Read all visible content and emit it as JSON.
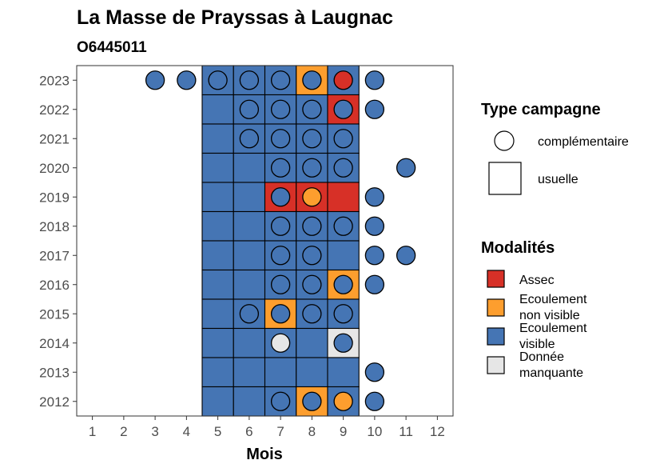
{
  "chart_data": {
    "type": "heatmap",
    "title": "La Masse de Prayssas à Laugnac",
    "subtitle": "O6445011",
    "xlabel": "Mois",
    "ylabel": "",
    "x_ticks": [
      "1",
      "2",
      "3",
      "4",
      "5",
      "6",
      "7",
      "8",
      "9",
      "10",
      "11",
      "12"
    ],
    "y_ticks": [
      "2012",
      "2013",
      "2014",
      "2015",
      "2016",
      "2017",
      "2018",
      "2019",
      "2020",
      "2021",
      "2022",
      "2023"
    ],
    "xlim": [
      0.5,
      12.5
    ],
    "legend_type": {
      "title": "Type campagne",
      "items": [
        {
          "key": "complementaire",
          "label": "complémentaire",
          "shape": "circle"
        },
        {
          "key": "usuelle",
          "label": "usuelle",
          "shape": "square"
        }
      ]
    },
    "legend_modalites": {
      "title": "Modalités",
      "items": [
        {
          "key": "assec",
          "label_lines": [
            "Assec"
          ],
          "color": "#d73027"
        },
        {
          "key": "ecoulement_non_visible",
          "label_lines": [
            "Ecoulement",
            "non visible"
          ],
          "color": "#fd9e2e"
        },
        {
          "key": "ecoulement_visible",
          "label_lines": [
            "Ecoulement",
            "visible"
          ],
          "color": "#4575b4"
        },
        {
          "key": "donnee_manquante",
          "label_lines": [
            "Donnée",
            "manquante"
          ],
          "color": "#e6e6e6"
        }
      ]
    },
    "squares": [
      {
        "year": 2023,
        "values": {
          "5": "ecoulement_visible",
          "6": "ecoulement_visible",
          "7": "ecoulement_visible",
          "8": "ecoulement_non_visible",
          "9": "ecoulement_visible"
        }
      },
      {
        "year": 2022,
        "values": {
          "5": "ecoulement_visible",
          "6": "ecoulement_visible",
          "7": "ecoulement_visible",
          "8": "ecoulement_visible",
          "9": "assec"
        }
      },
      {
        "year": 2021,
        "values": {
          "5": "ecoulement_visible",
          "6": "ecoulement_visible",
          "7": "ecoulement_visible",
          "8": "ecoulement_visible",
          "9": "ecoulement_visible"
        }
      },
      {
        "year": 2020,
        "values": {
          "5": "ecoulement_visible",
          "6": "ecoulement_visible",
          "7": "ecoulement_visible",
          "8": "ecoulement_visible",
          "9": "ecoulement_visible"
        }
      },
      {
        "year": 2019,
        "values": {
          "5": "ecoulement_visible",
          "6": "ecoulement_visible",
          "7": "assec",
          "8": "assec",
          "9": "assec"
        }
      },
      {
        "year": 2018,
        "values": {
          "5": "ecoulement_visible",
          "6": "ecoulement_visible",
          "7": "ecoulement_visible",
          "8": "ecoulement_visible",
          "9": "ecoulement_visible"
        }
      },
      {
        "year": 2017,
        "values": {
          "5": "ecoulement_visible",
          "6": "ecoulement_visible",
          "7": "ecoulement_visible",
          "8": "ecoulement_visible",
          "9": "ecoulement_visible"
        }
      },
      {
        "year": 2016,
        "values": {
          "5": "ecoulement_visible",
          "6": "ecoulement_visible",
          "7": "ecoulement_visible",
          "8": "ecoulement_visible",
          "9": "ecoulement_non_visible"
        }
      },
      {
        "year": 2015,
        "values": {
          "5": "ecoulement_visible",
          "6": "ecoulement_visible",
          "7": "ecoulement_non_visible",
          "8": "ecoulement_visible",
          "9": "ecoulement_visible"
        }
      },
      {
        "year": 2014,
        "values": {
          "5": "ecoulement_visible",
          "6": "ecoulement_visible",
          "7": "ecoulement_visible",
          "8": "ecoulement_visible",
          "9": "donnee_manquante"
        }
      },
      {
        "year": 2013,
        "values": {
          "5": "ecoulement_visible",
          "6": "ecoulement_visible",
          "7": "ecoulement_visible",
          "8": "ecoulement_visible",
          "9": "ecoulement_visible"
        }
      },
      {
        "year": 2012,
        "values": {
          "5": "ecoulement_visible",
          "6": "ecoulement_visible",
          "7": "ecoulement_visible",
          "8": "ecoulement_non_visible",
          "9": "ecoulement_visible"
        }
      }
    ],
    "circles": [
      {
        "year": 2023,
        "values": {
          "3": "ecoulement_visible",
          "4": "ecoulement_visible",
          "5": "ecoulement_visible",
          "6": "ecoulement_visible",
          "7": "ecoulement_visible",
          "8": "ecoulement_visible",
          "9": "assec",
          "10": "ecoulement_visible"
        }
      },
      {
        "year": 2022,
        "values": {
          "6": "ecoulement_visible",
          "7": "ecoulement_visible",
          "8": "ecoulement_visible",
          "9": "ecoulement_visible",
          "10": "ecoulement_visible"
        }
      },
      {
        "year": 2021,
        "values": {
          "6": "ecoulement_visible",
          "7": "ecoulement_visible",
          "8": "ecoulement_visible",
          "9": "ecoulement_visible"
        }
      },
      {
        "year": 2020,
        "values": {
          "7": "ecoulement_visible",
          "8": "ecoulement_visible",
          "9": "ecoulement_visible",
          "11": "ecoulement_visible"
        }
      },
      {
        "year": 2019,
        "values": {
          "7": "ecoulement_visible",
          "8": "ecoulement_non_visible",
          "10": "ecoulement_visible"
        }
      },
      {
        "year": 2018,
        "values": {
          "7": "ecoulement_visible",
          "8": "ecoulement_visible",
          "9": "ecoulement_visible",
          "10": "ecoulement_visible"
        }
      },
      {
        "year": 2017,
        "values": {
          "7": "ecoulement_visible",
          "8": "ecoulement_visible",
          "10": "ecoulement_visible",
          "11": "ecoulement_visible"
        }
      },
      {
        "year": 2016,
        "values": {
          "7": "ecoulement_visible",
          "8": "ecoulement_visible",
          "9": "ecoulement_visible",
          "10": "ecoulement_visible"
        }
      },
      {
        "year": 2015,
        "values": {
          "6": "ecoulement_visible",
          "7": "ecoulement_visible",
          "8": "ecoulement_visible",
          "9": "ecoulement_visible"
        }
      },
      {
        "year": 2014,
        "values": {
          "7": "donnee_manquante",
          "9": "ecoulement_visible"
        }
      },
      {
        "year": 2013,
        "values": {
          "10": "ecoulement_visible"
        }
      },
      {
        "year": 2012,
        "values": {
          "7": "ecoulement_visible",
          "8": "ecoulement_visible",
          "9": "ecoulement_non_visible",
          "10": "ecoulement_visible"
        }
      }
    ]
  }
}
